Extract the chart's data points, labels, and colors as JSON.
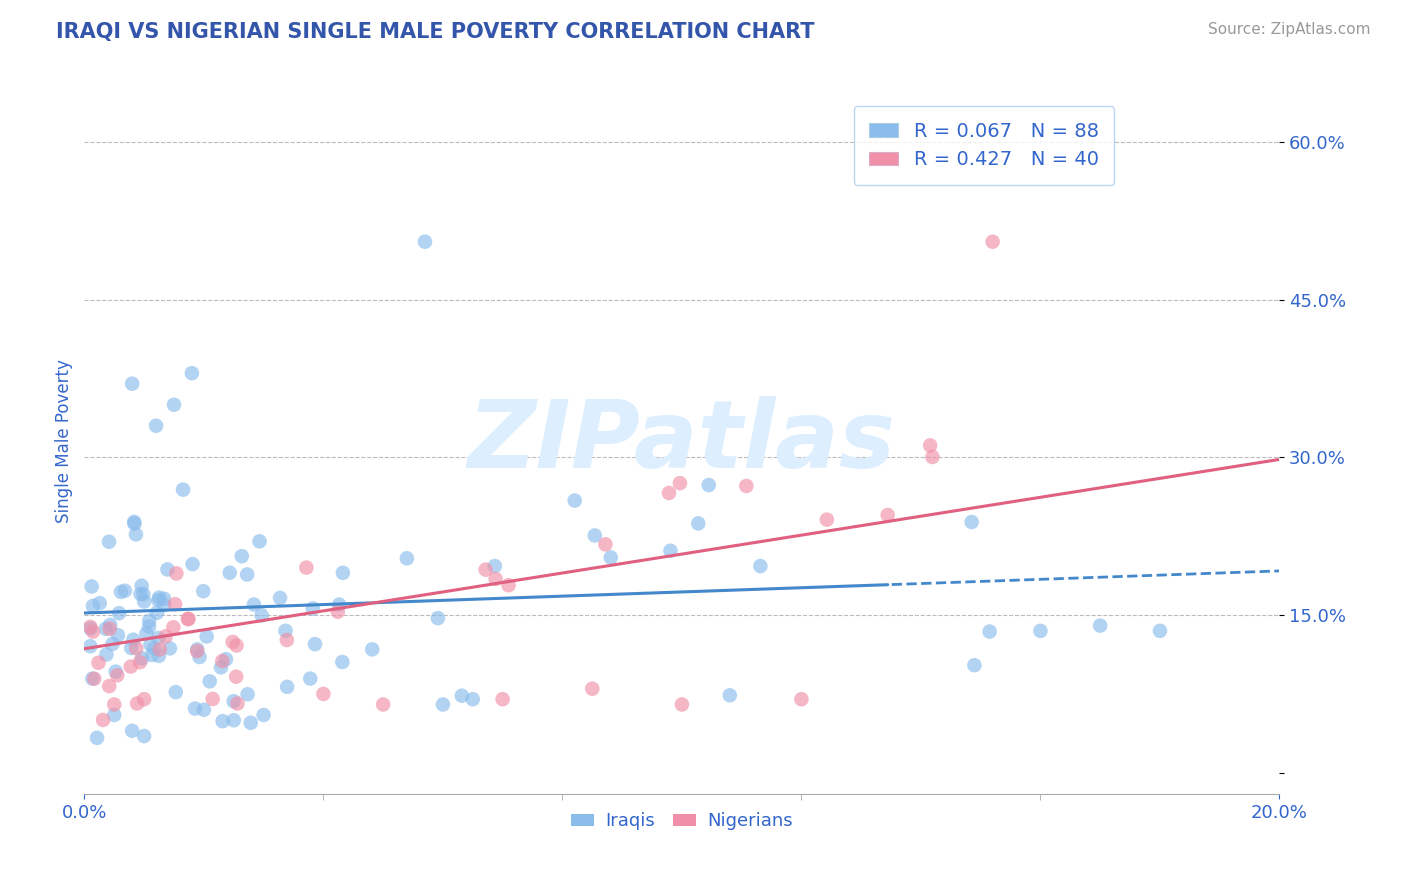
{
  "title": "IRAQI VS NIGERIAN SINGLE MALE POVERTY CORRELATION CHART",
  "source_text": "Source: ZipAtlas.com",
  "ylabel": "Single Male Poverty",
  "xlim": [
    0.0,
    0.2
  ],
  "ylim": [
    -0.02,
    0.65
  ],
  "ytick_positions": [
    0.0,
    0.15,
    0.3,
    0.45,
    0.6
  ],
  "ytick_labels": [
    "",
    "15.0%",
    "30.0%",
    "45.0%",
    "60.0%"
  ],
  "iraqi_color": "#8abcec",
  "nigerian_color": "#f090a8",
  "iraqi_line_color": "#4488cc",
  "nigerian_line_color": "#e06080",
  "background_color": "#ffffff",
  "grid_color": "#cccccc",
  "title_color": "#3355aa",
  "tick_color": "#3366cc",
  "watermark_color": "#ddeeff",
  "legend_border_color": "#aaccee"
}
